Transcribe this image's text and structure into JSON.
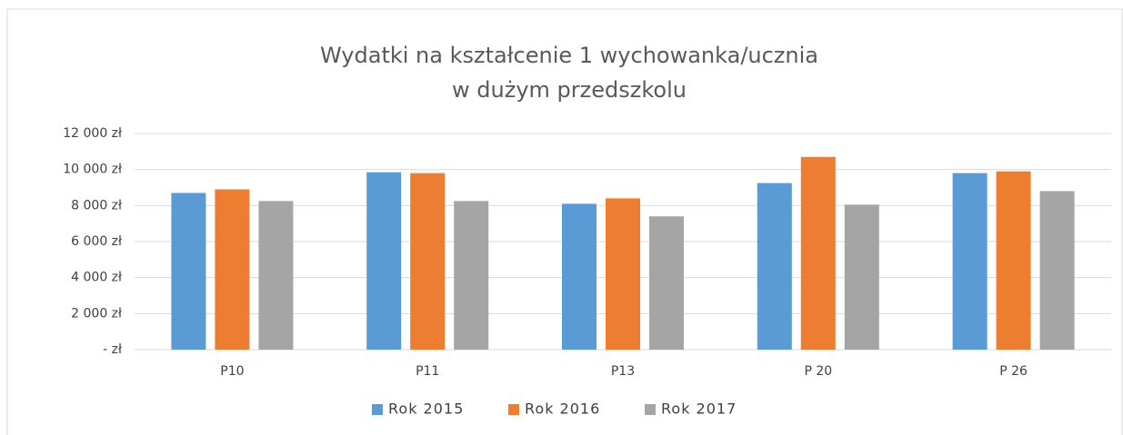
{
  "chart_data": {
    "type": "bar",
    "title": [
      "Wydatki na kształcenie 1 wychowanka/ucznia",
      "w dużym przedszkolu"
    ],
    "categories": [
      "P10",
      "P11",
      "P13",
      "P 20",
      "P 26"
    ],
    "series": [
      {
        "name": "Rok 2015",
        "color": "#5b9bd5",
        "values": [
          8700,
          9850,
          8100,
          9250,
          9800
        ]
      },
      {
        "name": "Rok 2016",
        "color": "#ed7d31",
        "values": [
          8900,
          9800,
          8400,
          10700,
          9900
        ]
      },
      {
        "name": "Rok 2017",
        "color": "#a5a5a5",
        "values": [
          8250,
          8250,
          7400,
          8050,
          8800
        ]
      }
    ],
    "ylim": [
      0,
      12000
    ],
    "yticks": [
      {
        "value": 0,
        "label": "- zł"
      },
      {
        "value": 2000,
        "label": "2 000 zł"
      },
      {
        "value": 4000,
        "label": "4 000 zł"
      },
      {
        "value": 6000,
        "label": "6 000 zł"
      },
      {
        "value": 8000,
        "label": "8 000 zł"
      },
      {
        "value": 10000,
        "label": "10 000 zł"
      },
      {
        "value": 12000,
        "label": "12 000 zł"
      }
    ],
    "grid": true,
    "legend": "bottom"
  }
}
